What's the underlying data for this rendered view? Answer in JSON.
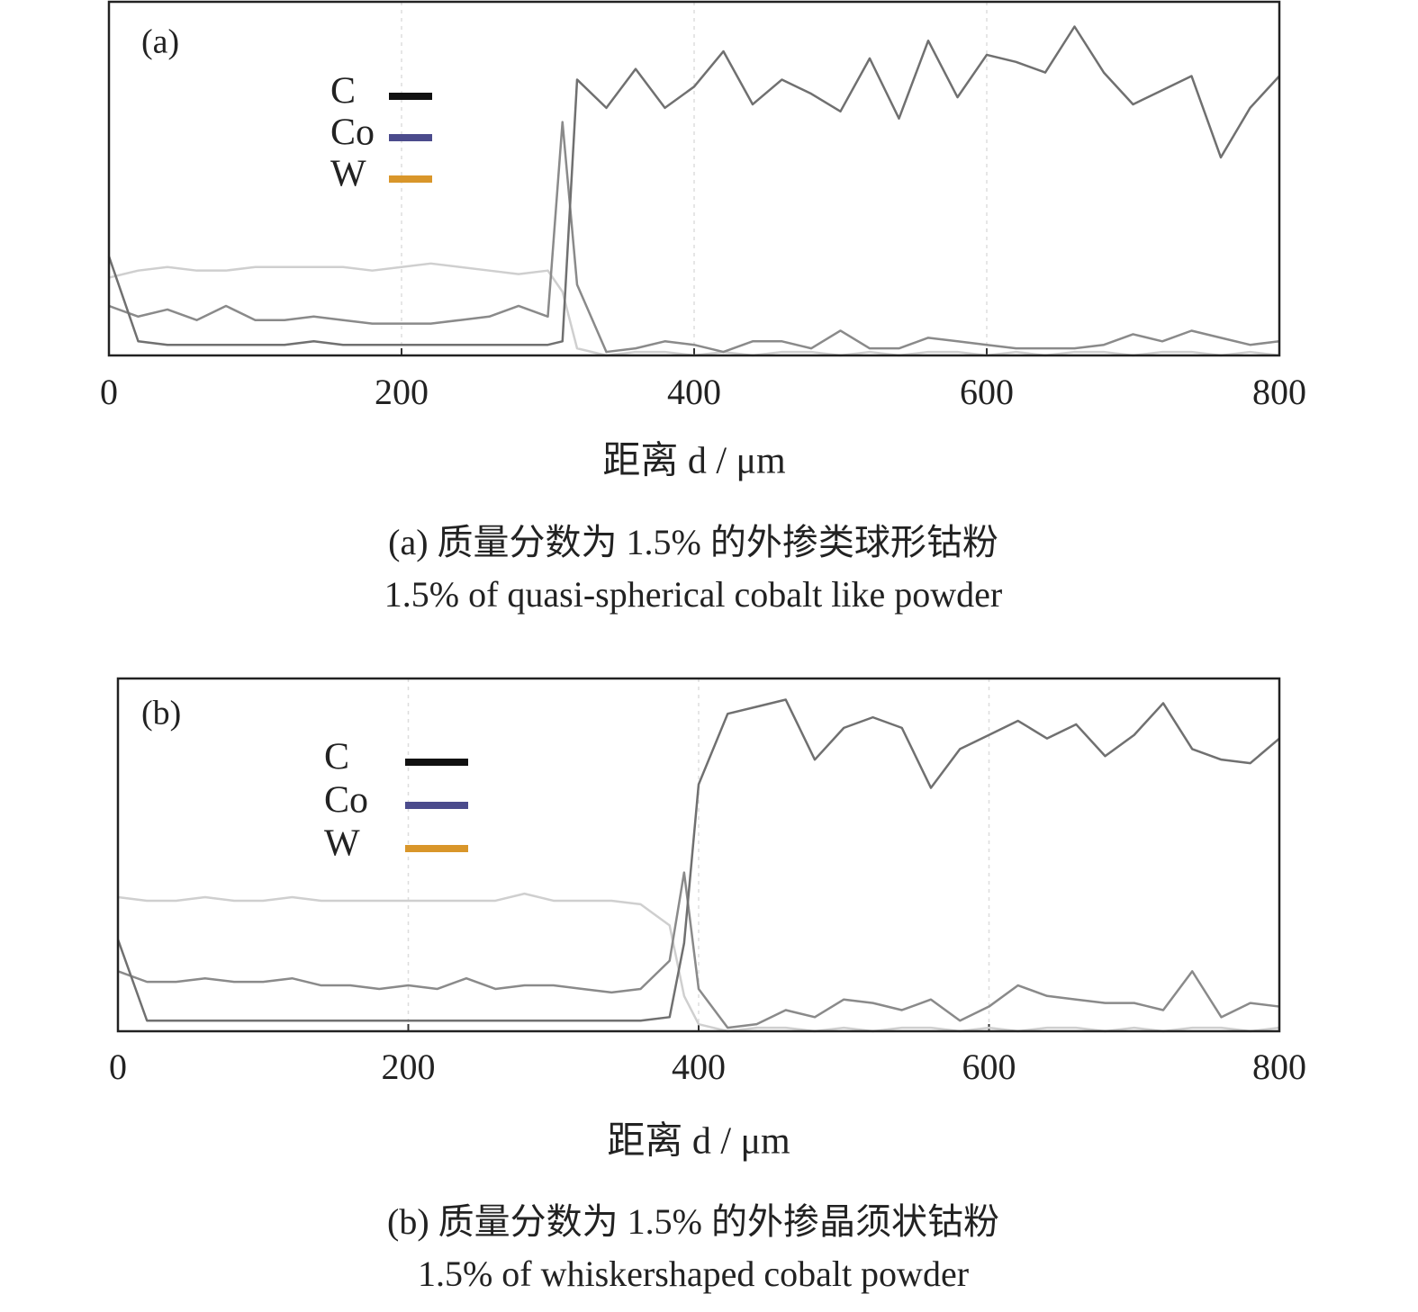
{
  "chart_data": [
    {
      "type": "line",
      "panel_label": "(a)",
      "xlabel": "距离 d / μm",
      "caption": [
        "(a) 质量分数为 1.5% 的外掺类球形钴粉",
        "1.5% of quasi-spherical cobalt like powder"
      ],
      "xlim": [
        0,
        800
      ],
      "xticks": [
        0,
        200,
        400,
        600,
        800
      ],
      "ylim": [
        0,
        100
      ],
      "grid": true,
      "x": [
        0,
        20,
        40,
        60,
        80,
        100,
        120,
        140,
        160,
        180,
        200,
        220,
        240,
        260,
        280,
        300,
        310,
        320,
        340,
        360,
        380,
        400,
        420,
        440,
        460,
        480,
        500,
        520,
        540,
        560,
        580,
        600,
        620,
        640,
        660,
        680,
        700,
        720,
        740,
        760,
        780,
        800
      ],
      "series": [
        {
          "name": "C",
          "color": "#111111",
          "line_color": "#707070",
          "values": [
            28,
            4,
            3,
            3,
            3,
            3,
            3,
            4,
            3,
            3,
            3,
            3,
            3,
            3,
            3,
            3,
            4,
            78,
            70,
            81,
            70,
            76,
            86,
            71,
            78,
            74,
            69,
            84,
            67,
            89,
            73,
            85,
            83,
            80,
            93,
            80,
            71,
            75,
            79,
            56,
            70,
            79
          ]
        },
        {
          "name": "Co",
          "color": "#4b4b8c",
          "line_color": "#8a8a8a",
          "values": [
            14,
            11,
            13,
            10,
            14,
            10,
            10,
            11,
            10,
            9,
            9,
            9,
            10,
            11,
            14,
            11,
            66,
            20,
            1,
            2,
            4,
            3,
            1,
            4,
            4,
            2,
            7,
            2,
            2,
            5,
            4,
            3,
            2,
            2,
            2,
            3,
            6,
            4,
            7,
            5,
            3,
            4
          ]
        },
        {
          "name": "W",
          "color": "#d9962a",
          "line_color": "#cfcfcf",
          "values": [
            22,
            24,
            25,
            24,
            24,
            25,
            25,
            25,
            25,
            24,
            25,
            26,
            25,
            24,
            23,
            24,
            18,
            2,
            0,
            1,
            1,
            0,
            1,
            0,
            1,
            1,
            0,
            1,
            0,
            1,
            1,
            0,
            1,
            0,
            1,
            1,
            0,
            1,
            1,
            0,
            1,
            0
          ]
        }
      ]
    },
    {
      "type": "line",
      "panel_label": "(b)",
      "xlabel": "距离 d / μm",
      "caption": [
        "(b) 质量分数为 1.5% 的外掺晶须状钴粉",
        "1.5% of whiskershaped cobalt powder"
      ],
      "xlim": [
        0,
        800
      ],
      "xticks": [
        0,
        200,
        400,
        600,
        800
      ],
      "ylim": [
        0,
        100
      ],
      "grid": true,
      "x": [
        0,
        20,
        40,
        60,
        80,
        100,
        120,
        140,
        160,
        180,
        200,
        220,
        240,
        260,
        280,
        300,
        320,
        340,
        360,
        380,
        390,
        400,
        420,
        440,
        460,
        480,
        500,
        520,
        540,
        560,
        580,
        600,
        620,
        640,
        660,
        680,
        700,
        720,
        740,
        760,
        780,
        800
      ],
      "series": [
        {
          "name": "C",
          "color": "#111111",
          "line_color": "#707070",
          "values": [
            26,
            3,
            3,
            3,
            3,
            3,
            3,
            3,
            3,
            3,
            3,
            3,
            3,
            3,
            3,
            3,
            3,
            3,
            3,
            4,
            25,
            70,
            90,
            92,
            94,
            77,
            86,
            89,
            86,
            69,
            80,
            84,
            88,
            83,
            87,
            78,
            84,
            93,
            80,
            77,
            76,
            83
          ]
        },
        {
          "name": "Co",
          "color": "#4b4b8c",
          "line_color": "#8a8a8a",
          "values": [
            17,
            14,
            14,
            15,
            14,
            14,
            15,
            13,
            13,
            12,
            13,
            12,
            15,
            12,
            13,
            13,
            12,
            11,
            12,
            20,
            45,
            12,
            1,
            2,
            6,
            4,
            9,
            8,
            6,
            9,
            3,
            7,
            13,
            10,
            9,
            8,
            8,
            6,
            17,
            4,
            8,
            7
          ]
        },
        {
          "name": "W",
          "color": "#d9962a",
          "line_color": "#cfcfcf",
          "values": [
            38,
            37,
            37,
            38,
            37,
            37,
            38,
            37,
            37,
            37,
            37,
            37,
            37,
            37,
            39,
            37,
            37,
            37,
            36,
            30,
            10,
            2,
            0,
            1,
            1,
            0,
            1,
            0,
            1,
            1,
            0,
            1,
            0,
            1,
            1,
            0,
            1,
            0,
            1,
            1,
            0,
            1
          ]
        }
      ]
    }
  ]
}
